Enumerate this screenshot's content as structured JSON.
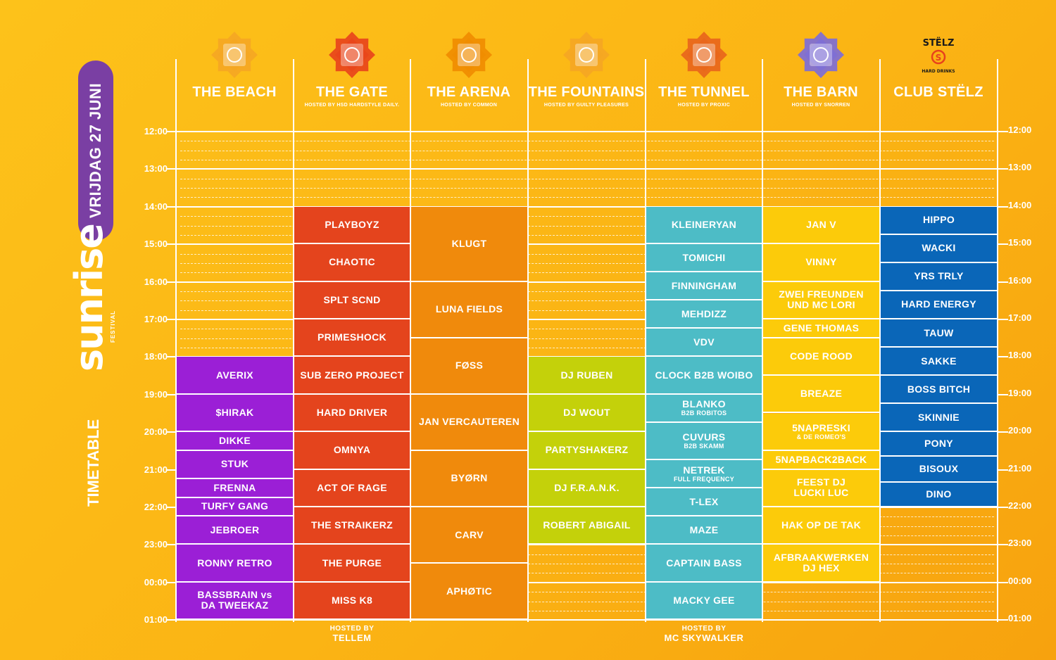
{
  "brand": {
    "day_label": "VRIJDAG 27 JUNI",
    "logo": "sunrise",
    "logo_sub": "FESTIVAL",
    "timetable_label": "TIMETABLE",
    "colors": {
      "background": "#fbb414",
      "pill": "#7a3fa3"
    }
  },
  "times": [
    "12:00",
    "13:00",
    "14:00",
    "15:00",
    "16:00",
    "17:00",
    "18:00",
    "19:00",
    "20:00",
    "21:00",
    "22:00",
    "23:00",
    "00:00",
    "01:00"
  ],
  "stages": [
    {
      "name": "THE BEACH",
      "host": "",
      "icon": "sun-waves-icon",
      "icon_color": "#f5a623",
      "slots": [
        {
          "lines": [
            "AVERIX"
          ],
          "start": 18.0,
          "end": 19.0,
          "color": "#9b1fd6"
        },
        {
          "lines": [
            "$HIRAK"
          ],
          "start": 19.0,
          "end": 20.0,
          "color": "#9b1fd6"
        },
        {
          "lines": [
            "DIKKE"
          ],
          "start": 20.0,
          "end": 20.5,
          "color": "#9b1fd6"
        },
        {
          "lines": [
            "STUK"
          ],
          "start": 20.5,
          "end": 21.25,
          "color": "#9b1fd6"
        },
        {
          "lines": [
            "FRENNA"
          ],
          "start": 21.25,
          "end": 21.75,
          "color": "#9b1fd6"
        },
        {
          "lines": [
            "TURFY GANG"
          ],
          "start": 21.75,
          "end": 22.25,
          "color": "#9b1fd6"
        },
        {
          "lines": [
            "JEBROER"
          ],
          "start": 22.25,
          "end": 23.0,
          "color": "#9b1fd6"
        },
        {
          "lines": [
            "RONNY RETRO"
          ],
          "start": 23.0,
          "end": 24.0,
          "color": "#9b1fd6"
        },
        {
          "lines": [
            "BASSBRAIN vs",
            "DA TWEEKAZ"
          ],
          "start": 24.0,
          "end": 25.0,
          "color": "#9b1fd6"
        }
      ]
    },
    {
      "name": "THE GATE",
      "host": "HOSTED BY HSD HARDSTYLE DAILY.",
      "icon": "crossed-keys-icon",
      "icon_color": "#e8411c",
      "slots": [
        {
          "lines": [
            "PLAYBOYZ"
          ],
          "start": 14.0,
          "end": 15.0,
          "color": "#e4441d"
        },
        {
          "lines": [
            "CHAOTIC"
          ],
          "start": 15.0,
          "end": 16.0,
          "color": "#e4441d"
        },
        {
          "lines": [
            "SPLT SCND"
          ],
          "start": 16.0,
          "end": 17.0,
          "color": "#e4441d"
        },
        {
          "lines": [
            "PRIMESHOCK"
          ],
          "start": 17.0,
          "end": 18.0,
          "color": "#e4441d"
        },
        {
          "lines": [
            "SUB ZERO PROJECT"
          ],
          "start": 18.0,
          "end": 19.0,
          "color": "#e4441d"
        },
        {
          "lines": [
            "HARD DRIVER"
          ],
          "start": 19.0,
          "end": 20.0,
          "color": "#e4441d"
        },
        {
          "lines": [
            "OMNYA"
          ],
          "start": 20.0,
          "end": 21.0,
          "color": "#e4441d"
        },
        {
          "lines": [
            "ACT OF RAGE"
          ],
          "start": 21.0,
          "end": 22.0,
          "color": "#e4441d"
        },
        {
          "lines": [
            "THE STRAIKERZ"
          ],
          "start": 22.0,
          "end": 23.0,
          "color": "#e4441d"
        },
        {
          "lines": [
            "THE PURGE"
          ],
          "start": 23.0,
          "end": 24.0,
          "color": "#e4441d"
        },
        {
          "lines": [
            "MISS K8"
          ],
          "start": 24.0,
          "end": 25.0,
          "color": "#e4441d"
        }
      ]
    },
    {
      "name": "THE ARENA",
      "host": "HOSTED BY COMMON",
      "icon": "arena-icon",
      "icon_color": "#f08c00",
      "slots": [
        {
          "lines": [
            "KLUGT"
          ],
          "start": 14.0,
          "end": 16.0,
          "color": "#f08a0c"
        },
        {
          "lines": [
            "LUNA FIELDS"
          ],
          "start": 16.0,
          "end": 17.5,
          "color": "#f08a0c"
        },
        {
          "lines": [
            "FØSS"
          ],
          "start": 17.5,
          "end": 19.0,
          "color": "#f08a0c"
        },
        {
          "lines": [
            "JAN VERCAUTEREN"
          ],
          "start": 19.0,
          "end": 20.5,
          "color": "#f08a0c"
        },
        {
          "lines": [
            "BYØRN"
          ],
          "start": 20.5,
          "end": 22.0,
          "color": "#f08a0c"
        },
        {
          "lines": [
            "CARV"
          ],
          "start": 22.0,
          "end": 23.5,
          "color": "#f08a0c"
        },
        {
          "lines": [
            "APHØTIC"
          ],
          "start": 23.5,
          "end": 25.0,
          "color": "#f08a0c"
        }
      ]
    },
    {
      "name": "THE FOUNTAINS",
      "host": "HOSTED BY GUILTY PLEASURES",
      "icon": "fountain-icon",
      "icon_color": "#f5a623",
      "slots": [
        {
          "lines": [
            "DJ RUBEN"
          ],
          "start": 18.0,
          "end": 19.0,
          "color": "#c4d10a"
        },
        {
          "lines": [
            "DJ WOUT"
          ],
          "start": 19.0,
          "end": 20.0,
          "color": "#c4d10a"
        },
        {
          "lines": [
            "PARTYSHAKERZ"
          ],
          "start": 20.0,
          "end": 21.0,
          "color": "#c4d10a"
        },
        {
          "lines": [
            "DJ F.R.A.N.K."
          ],
          "start": 21.0,
          "end": 22.0,
          "color": "#c4d10a"
        },
        {
          "lines": [
            "ROBERT ABIGAIL"
          ],
          "start": 22.0,
          "end": 23.0,
          "color": "#c4d10a"
        }
      ]
    },
    {
      "name": "THE TUNNEL",
      "host": "HOSTED BY PROXIC",
      "icon": "tunnel-icon",
      "icon_color": "#e8641c",
      "slots": [
        {
          "lines": [
            "KLEINERYAN"
          ],
          "start": 14.0,
          "end": 15.0,
          "color": "#4dbcc6"
        },
        {
          "lines": [
            "TOMICHI"
          ],
          "start": 15.0,
          "end": 15.75,
          "color": "#4dbcc6"
        },
        {
          "lines": [
            "FINNINGHAM"
          ],
          "start": 15.75,
          "end": 16.5,
          "color": "#4dbcc6"
        },
        {
          "lines": [
            "MEHDIZZ"
          ],
          "start": 16.5,
          "end": 17.25,
          "color": "#4dbcc6"
        },
        {
          "lines": [
            "VDV"
          ],
          "start": 17.25,
          "end": 18.0,
          "color": "#4dbcc6"
        },
        {
          "lines": [
            "CLOCK B2B WOIBO"
          ],
          "start": 18.0,
          "end": 19.0,
          "color": "#4dbcc6"
        },
        {
          "lines": [
            "BLANKO",
            "B2B ROBITOS"
          ],
          "start": 19.0,
          "end": 19.75,
          "color": "#4dbcc6"
        },
        {
          "lines": [
            "CUVURS",
            "B2B SKAMM"
          ],
          "start": 19.75,
          "end": 20.75,
          "color": "#4dbcc6"
        },
        {
          "lines": [
            "NETREK",
            "FULL FREQUENCY"
          ],
          "start": 20.75,
          "end": 21.5,
          "color": "#4dbcc6"
        },
        {
          "lines": [
            "T-LEX"
          ],
          "start": 21.5,
          "end": 22.25,
          "color": "#4dbcc6"
        },
        {
          "lines": [
            "MAZE"
          ],
          "start": 22.25,
          "end": 23.0,
          "color": "#4dbcc6"
        },
        {
          "lines": [
            "CAPTAIN BASS"
          ],
          "start": 23.0,
          "end": 24.0,
          "color": "#4dbcc6"
        },
        {
          "lines": [
            "MACKY GEE"
          ],
          "start": 24.0,
          "end": 25.0,
          "color": "#4dbcc6"
        }
      ]
    },
    {
      "name": "THE BARN",
      "host": "HOSTED BY SNORREN",
      "icon": "barn-icon",
      "icon_color": "#7a6cdc",
      "slots": [
        {
          "lines": [
            "JAN V"
          ],
          "start": 14.0,
          "end": 15.0,
          "color": "#fccb0a"
        },
        {
          "lines": [
            "VINNY"
          ],
          "start": 15.0,
          "end": 16.0,
          "color": "#fccb0a"
        },
        {
          "lines": [
            "ZWEI FREUNDEN",
            "UND MC LORI"
          ],
          "start": 16.0,
          "end": 17.0,
          "color": "#fccb0a"
        },
        {
          "lines": [
            "GENE THOMAS"
          ],
          "start": 17.0,
          "end": 17.5,
          "color": "#fccb0a"
        },
        {
          "lines": [
            "CODE ROOD"
          ],
          "start": 17.5,
          "end": 18.5,
          "color": "#fccb0a"
        },
        {
          "lines": [
            "BREAZE"
          ],
          "start": 18.5,
          "end": 19.5,
          "color": "#fccb0a"
        },
        {
          "lines": [
            "5NAPRESKI",
            "& DE ROMEO'S"
          ],
          "start": 19.5,
          "end": 20.5,
          "color": "#fccb0a"
        },
        {
          "lines": [
            "5NAPBACK2BACK"
          ],
          "start": 20.5,
          "end": 21.0,
          "color": "#fccb0a"
        },
        {
          "lines": [
            "FEEST DJ",
            "LUCKI LUC"
          ],
          "start": 21.0,
          "end": 22.0,
          "color": "#fccb0a"
        },
        {
          "lines": [
            "HAK OP DE TAK"
          ],
          "start": 22.0,
          "end": 23.0,
          "color": "#fccb0a"
        },
        {
          "lines": [
            "AFBRAAKWERKEN",
            "DJ HEX"
          ],
          "start": 23.0,
          "end": 24.0,
          "color": "#fccb0a"
        }
      ]
    },
    {
      "name": "CLUB STËLZ",
      "host": "",
      "icon": "stelz-logo-icon",
      "icon_color": "#e8641c",
      "slots": [
        {
          "lines": [
            "HIPPO"
          ],
          "start": 14.0,
          "end": 14.75,
          "color": "#0a66b8"
        },
        {
          "lines": [
            "WACKI"
          ],
          "start": 14.75,
          "end": 15.5,
          "color": "#0a66b8"
        },
        {
          "lines": [
            "YRS TRLY"
          ],
          "start": 15.5,
          "end": 16.25,
          "color": "#0a66b8"
        },
        {
          "lines": [
            "HARD ENERGY"
          ],
          "start": 16.25,
          "end": 17.0,
          "color": "#0a66b8"
        },
        {
          "lines": [
            "TAUW"
          ],
          "start": 17.0,
          "end": 17.75,
          "color": "#0a66b8"
        },
        {
          "lines": [
            "SAKKE"
          ],
          "start": 17.75,
          "end": 18.5,
          "color": "#0a66b8"
        },
        {
          "lines": [
            "BOSS BITCH"
          ],
          "start": 18.5,
          "end": 19.25,
          "color": "#0a66b8"
        },
        {
          "lines": [
            "SKINNIE"
          ],
          "start": 19.25,
          "end": 20.0,
          "color": "#0a66b8"
        },
        {
          "lines": [
            "PONY"
          ],
          "start": 20.0,
          "end": 20.65,
          "color": "#0a66b8"
        },
        {
          "lines": [
            "BISOUX"
          ],
          "start": 20.65,
          "end": 21.35,
          "color": "#0a66b8"
        },
        {
          "lines": [
            "DINO"
          ],
          "start": 21.35,
          "end": 22.0,
          "color": "#0a66b8"
        }
      ]
    }
  ],
  "footer": {
    "gate_host": {
      "label": "HOSTED BY",
      "name": "TELLEM"
    },
    "tunnel_host": {
      "label": "HOSTED BY",
      "name": "MC SKYWALKER"
    }
  },
  "club_logo": {
    "top": "STËLZ",
    "bottom": "HARD DRINKS"
  }
}
